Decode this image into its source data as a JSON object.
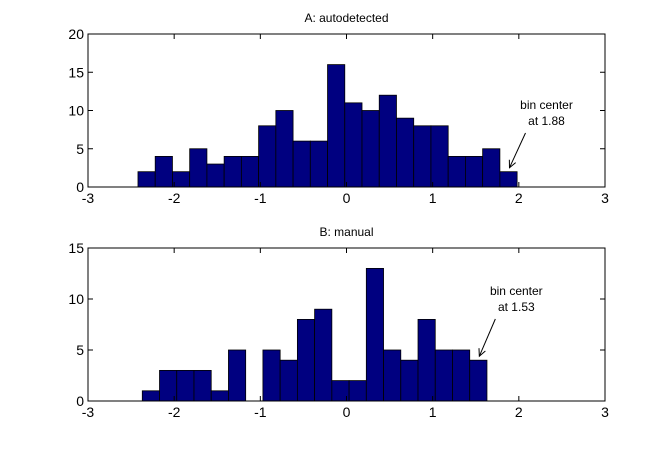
{
  "chart_data": [
    {
      "type": "bar",
      "title": "A: autodetected",
      "xlabel": "",
      "ylabel": "",
      "xlim": [
        -3,
        3
      ],
      "ylim": [
        0,
        20
      ],
      "xticks": [
        "-3",
        "-2",
        "-1",
        "0",
        "1",
        "2",
        "3"
      ],
      "yticks": [
        "0",
        "5",
        "10",
        "15",
        "20"
      ],
      "bin_width": 0.2,
      "bin_centers": [
        -2.32,
        -2.12,
        -1.92,
        -1.72,
        -1.52,
        -1.32,
        -1.12,
        -0.92,
        -0.72,
        -0.52,
        -0.32,
        -0.12,
        0.08,
        0.28,
        0.48,
        0.68,
        0.88,
        1.08,
        1.28,
        1.48,
        1.68,
        1.88
      ],
      "values": [
        2,
        4,
        2,
        5,
        3,
        4,
        4,
        8,
        10,
        6,
        6,
        16,
        11,
        10,
        12,
        9,
        8,
        8,
        4,
        4,
        5,
        2
      ],
      "bar_color": "#000080",
      "annotation": {
        "lines": [
          "bin center",
          "at 1.88"
        ],
        "target_x": 1.88,
        "target_y": 2
      }
    },
    {
      "type": "bar",
      "title": "B: manual",
      "xlabel": "",
      "ylabel": "",
      "xlim": [
        -3,
        3
      ],
      "ylim": [
        0,
        15
      ],
      "xticks": [
        "-3",
        "-2",
        "-1",
        "0",
        "1",
        "2",
        "3"
      ],
      "yticks": [
        "0",
        "5",
        "10",
        "15"
      ],
      "bin_width": 0.2,
      "bin_centers": [
        -2.27,
        -2.07,
        -1.87,
        -1.67,
        -1.47,
        -1.27,
        -1.07,
        -0.87,
        -0.67,
        -0.47,
        -0.27,
        -0.07,
        0.13,
        0.33,
        0.53,
        0.73,
        0.93,
        1.13,
        1.33,
        1.53
      ],
      "values": [
        1,
        3,
        3,
        3,
        1,
        5,
        0,
        5,
        4,
        8,
        9,
        2,
        2,
        13,
        5,
        4,
        8,
        5,
        5,
        4
      ],
      "bar_color": "#000080",
      "annotation": {
        "lines": [
          "bin center",
          "at 1.53"
        ],
        "target_x": 1.53,
        "target_y": 4
      }
    }
  ]
}
